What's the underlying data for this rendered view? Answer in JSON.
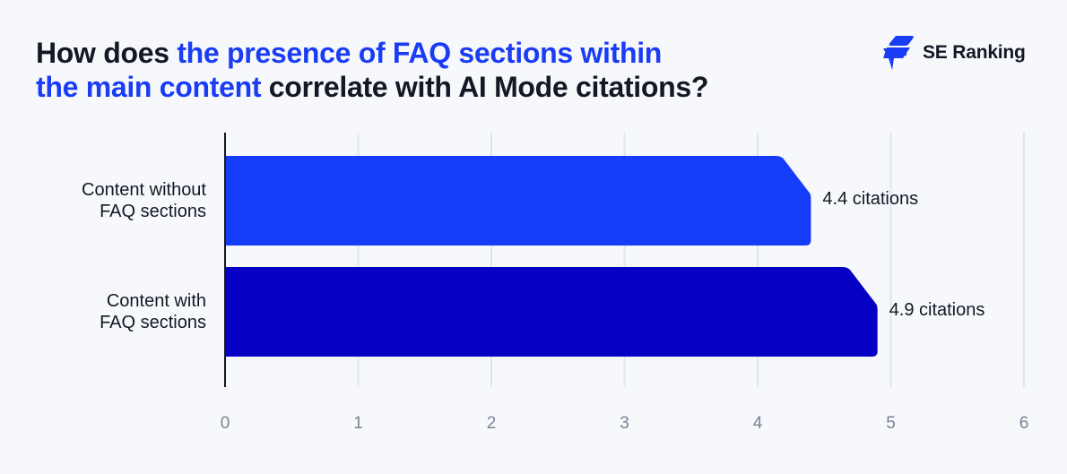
{
  "title": {
    "part1": "How does ",
    "highlight1": "the presence of FAQ sections within",
    "highlight2": "the main content",
    "part2": " correlate with AI Mode citations?"
  },
  "brand": {
    "name": "SE Ranking",
    "icon": "se-ranking-logo-icon",
    "color": "#1a3cf5"
  },
  "colors": {
    "bar_without": "#153df9",
    "bar_with": "#0500c4",
    "highlight": "#1a3cf5",
    "grid": "#dfe5f0",
    "axis": "#141824"
  },
  "chart_data": {
    "type": "bar",
    "orientation": "horizontal",
    "title": "How does the presence of FAQ sections within the main content correlate with AI Mode citations?",
    "categories": [
      "Content without FAQ sections",
      "Content with FAQ sections"
    ],
    "category_lines": [
      [
        "Content without",
        "FAQ sections"
      ],
      [
        "Content with",
        "FAQ sections"
      ]
    ],
    "values": [
      4.4,
      4.9
    ],
    "data_labels": [
      "4.4 citations",
      "4.9 citations"
    ],
    "xlabel": "",
    "ylabel": "",
    "xlim": [
      0,
      6
    ],
    "xticks": [
      "0",
      "1",
      "2",
      "3",
      "4",
      "5",
      "6"
    ],
    "grid": true,
    "legend": null
  }
}
